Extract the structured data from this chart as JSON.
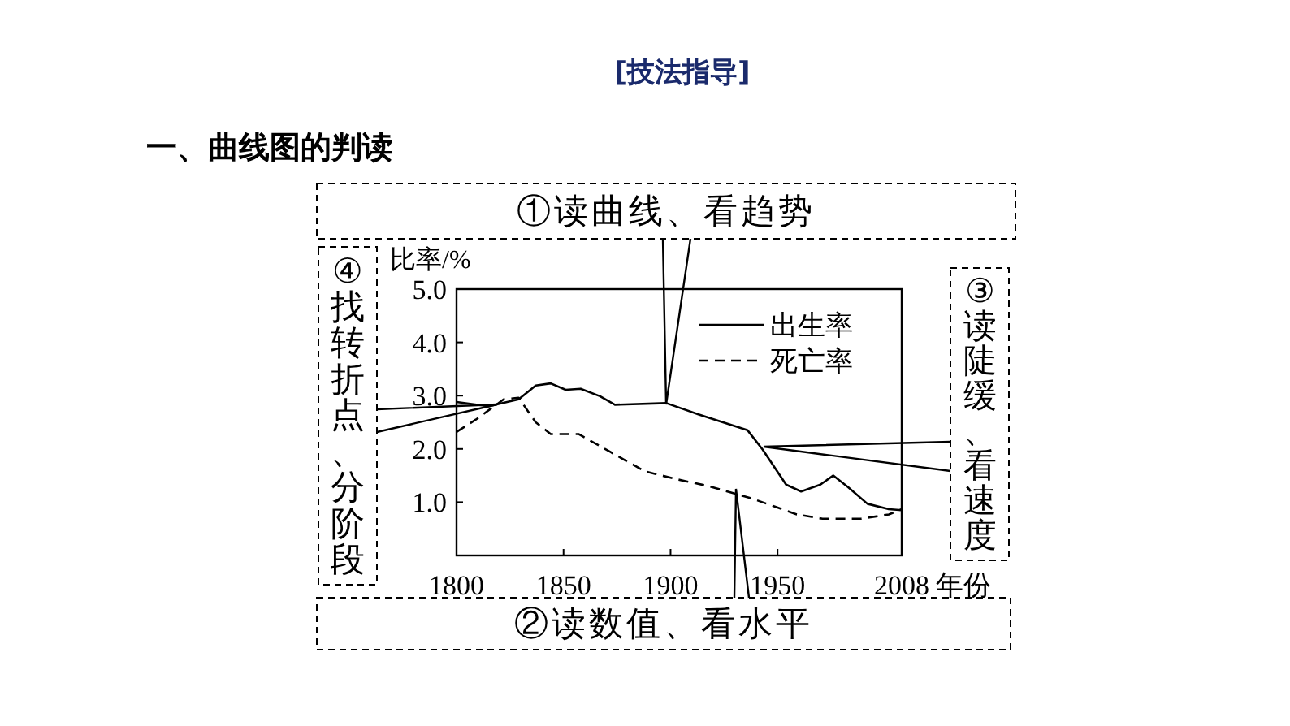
{
  "chart_data": {
    "type": "line",
    "title": "[技法指导]",
    "subtitle": "一、曲线图的判读",
    "ylabel": "比率/%",
    "xlabel": "年份",
    "xlim": [
      1800,
      2008
    ],
    "xticks": [
      1800,
      1850,
      1900,
      1950,
      2008
    ],
    "ylim": [
      0,
      5
    ],
    "yticks": [
      {
        "value": 1,
        "label": "1.0"
      },
      {
        "value": 2,
        "label": "2.0"
      },
      {
        "value": 3,
        "label": "3.0"
      },
      {
        "value": 4,
        "label": "4.0"
      },
      {
        "value": 5,
        "label": "5.0"
      }
    ],
    "grid": false,
    "legend": "top right",
    "marker": "none",
    "series": [
      {
        "name": "出生率",
        "color": "#000000",
        "line_style": "solid",
        "x": [
          1800,
          1815,
          1829,
          1837,
          1844,
          1851,
          1858,
          1867,
          1874,
          1898,
          1913,
          1936,
          1943,
          1954,
          1961,
          1970,
          1976,
          1983,
          1992,
          2002,
          2008
        ],
        "values": [
          2.88,
          2.8,
          2.93,
          3.19,
          3.23,
          3.11,
          3.13,
          2.99,
          2.83,
          2.86,
          2.65,
          2.35,
          1.99,
          1.33,
          1.2,
          1.33,
          1.5,
          1.28,
          0.97,
          0.87,
          0.85
        ]
      },
      {
        "name": "死亡率",
        "color": "#000000",
        "line_style": "dashed",
        "x": [
          1800,
          1809,
          1822,
          1829,
          1837,
          1844,
          1857,
          1872,
          1888,
          1903,
          1918,
          1938,
          1959,
          1971,
          1989,
          2002,
          2008
        ],
        "values": [
          2.32,
          2.55,
          2.93,
          2.96,
          2.5,
          2.28,
          2.28,
          1.94,
          1.58,
          1.43,
          1.3,
          1.07,
          0.77,
          0.69,
          0.69,
          0.77,
          0.87
        ]
      }
    ],
    "annotations": [
      "①读曲线、看趋势",
      "②读数值、看水平",
      "③读陡缓、看速度",
      "④找转折点、分阶段"
    ]
  }
}
